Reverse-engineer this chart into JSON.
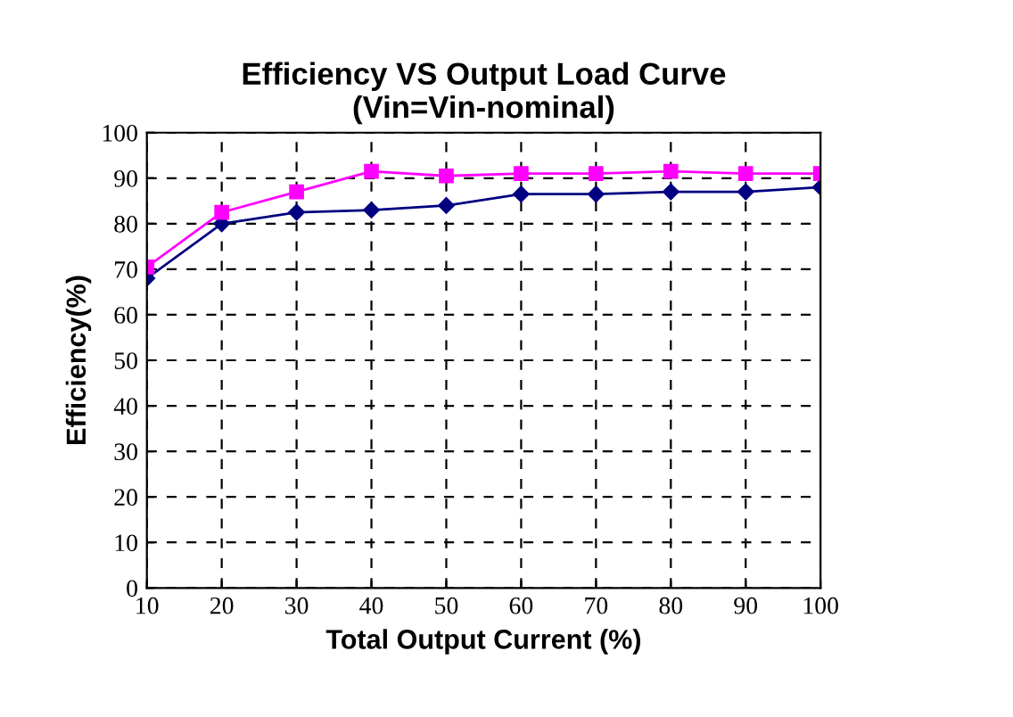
{
  "chart_data": {
    "type": "line",
    "title": "Efficiency VS Output Load Curve\n(Vin=Vin-nominal)",
    "xlabel": "Total Output Current (%)",
    "ylabel": "Efficiency(%)",
    "x": [
      10,
      20,
      30,
      40,
      50,
      60,
      70,
      80,
      90,
      100
    ],
    "series": [
      {
        "color": "#000080",
        "marker": "diamond",
        "values": [
          68,
          80,
          82.5,
          83,
          84,
          86.5,
          86.5,
          87,
          87,
          88
        ]
      },
      {
        "color": "#ff00ff",
        "marker": "square",
        "values": [
          70.5,
          82.5,
          87,
          91.5,
          90.5,
          91,
          91,
          91.5,
          91,
          91
        ]
      }
    ],
    "xlim": [
      10,
      100
    ],
    "xticks": [
      10,
      20,
      30,
      40,
      50,
      60,
      70,
      80,
      90,
      100
    ],
    "ylim": [
      0,
      100
    ],
    "yticks": [
      0,
      10,
      20,
      30,
      40,
      50,
      60,
      70,
      80,
      90,
      100
    ],
    "grid": true,
    "line_style": "solid"
  }
}
